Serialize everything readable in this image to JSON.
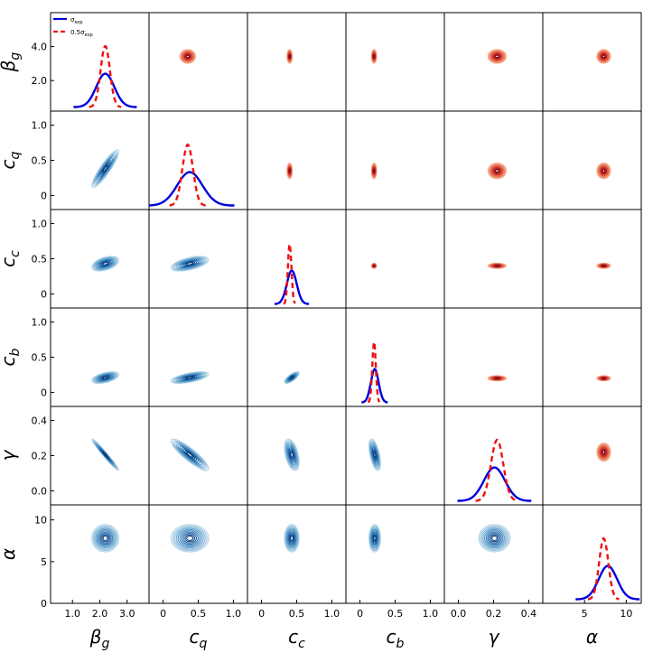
{
  "chart_data": {
    "type": "corner",
    "parameters": [
      {
        "symbol": "β",
        "sub": "g",
        "range": [
          0.2,
          3.8
        ],
        "ticks": [
          1.0,
          2.0,
          3.0
        ],
        "tick_labels": [
          "1.0",
          "2.0",
          "3.0"
        ],
        "blue": {
          "mean": 2.2,
          "sd": 0.33
        },
        "red": {
          "mean": 2.2,
          "sd": 0.17
        }
      },
      {
        "symbol": "c",
        "sub": "q",
        "range": [
          -0.2,
          1.2
        ],
        "ticks": [
          0,
          0.5,
          1.0
        ],
        "tick_labels": [
          "0",
          "0.5",
          "1.0"
        ],
        "blue": {
          "mean": 0.38,
          "sd": 0.18
        },
        "red": {
          "mean": 0.35,
          "sd": 0.075
        }
      },
      {
        "symbol": "c",
        "sub": "c",
        "range": [
          -0.2,
          1.2
        ],
        "ticks": [
          0,
          0.5,
          1.0
        ],
        "tick_labels": [
          "0",
          "0.5",
          "1.0"
        ],
        "blue": {
          "mean": 0.43,
          "sd": 0.07
        },
        "red": {
          "mean": 0.4,
          "sd": 0.025
        }
      },
      {
        "symbol": "c",
        "sub": "b",
        "range": [
          -0.2,
          1.2
        ],
        "ticks": [
          0,
          0.5,
          1.0
        ],
        "tick_labels": [
          "0",
          "0.5",
          "1.0"
        ],
        "blue": {
          "mean": 0.21,
          "sd": 0.055
        },
        "red": {
          "mean": 0.2,
          "sd": 0.025
        }
      },
      {
        "symbol": "γ",
        "sub": "",
        "range": [
          -0.08,
          0.48
        ],
        "ticks": [
          0,
          0.2,
          0.4
        ],
        "tick_labels": [
          "0.0",
          "0.2",
          "0.4"
        ],
        "blue": {
          "mean": 0.205,
          "sd": 0.06
        },
        "red": {
          "mean": 0.22,
          "sd": 0.035
        }
      },
      {
        "symbol": "α",
        "sub": "",
        "range": [
          0,
          11.8
        ],
        "ticks": [
          5,
          10
        ],
        "tick_labels": [
          "5",
          "10"
        ],
        "blue": {
          "mean": 7.8,
          "sd": 1.1
        },
        "red": {
          "mean": 7.3,
          "sd": 0.55
        }
      }
    ],
    "diag_y_ticks": [
      {
        "ticks": [
          2.0,
          4.0
        ],
        "tick_labels": [
          "2.0",
          "4.0"
        ]
      },
      {
        "ticks": [
          0,
          0.5,
          1.0
        ],
        "tick_labels": [
          "0",
          "0.5",
          "1.0"
        ]
      },
      {
        "ticks": [
          0,
          0.5,
          1.0
        ],
        "tick_labels": [
          "0",
          "0.5",
          "1.0"
        ]
      },
      {
        "ticks": [
          0,
          0.5,
          1.0
        ],
        "tick_labels": [
          "0",
          "0.5",
          "1.0"
        ]
      },
      {
        "ticks": [
          0,
          0.2,
          0.4
        ],
        "tick_labels": [
          "0.0",
          "0.2",
          "0.4"
        ]
      },
      {
        "ticks": [
          0,
          5,
          10
        ],
        "tick_labels": [
          "0",
          "5",
          "10"
        ]
      }
    ],
    "series": [
      {
        "name": "σ",
        "sub": "exp",
        "color": "#0000dd",
        "style": "solid",
        "region": "lower"
      },
      {
        "name": "0.5σ",
        "sub": "exp",
        "color": "#ee1111",
        "style": "dashed",
        "region": "upper"
      }
    ],
    "legend": "top-left",
    "correlations": {
      "1,0": 0.9,
      "2,0": 0.45,
      "2,1": 0.55,
      "3,0": 0.5,
      "3,1": 0.6,
      "3,2": 0.75,
      "4,0": -0.98,
      "4,1": -0.88,
      "4,2": -0.45,
      "4,3": -0.55,
      "5,0": 0.0,
      "5,1": 0.0,
      "5,2": 0.0,
      "5,3": 0.0,
      "5,4": 0.0
    }
  }
}
